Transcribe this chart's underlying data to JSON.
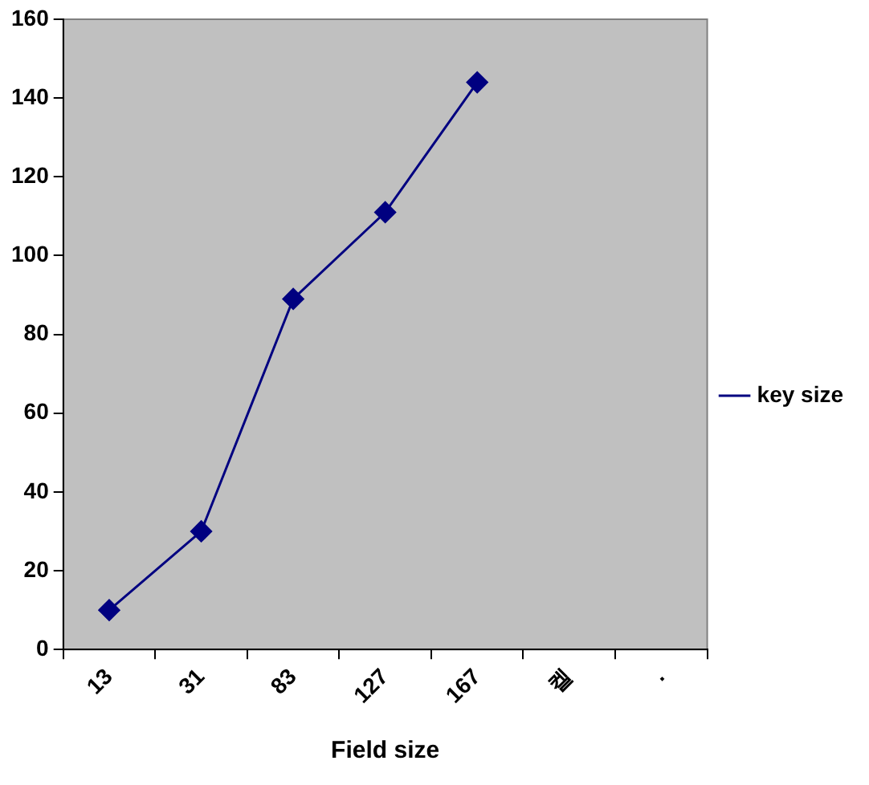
{
  "chart_data": {
    "type": "line",
    "xlabel": "Field size",
    "categories": [
      "13",
      "31",
      "83",
      "127",
      "167",
      "켈",
      "."
    ],
    "series": [
      {
        "name": "key size",
        "color": "#000080",
        "values": [
          10,
          30,
          89,
          111,
          144,
          null,
          null
        ]
      }
    ],
    "ylim": [
      0,
      160
    ],
    "yticks": [
      0,
      20,
      40,
      60,
      80,
      100,
      120,
      140,
      160
    ],
    "grid": false,
    "legend": "right",
    "marker": "diamond",
    "line_style": "solid"
  }
}
